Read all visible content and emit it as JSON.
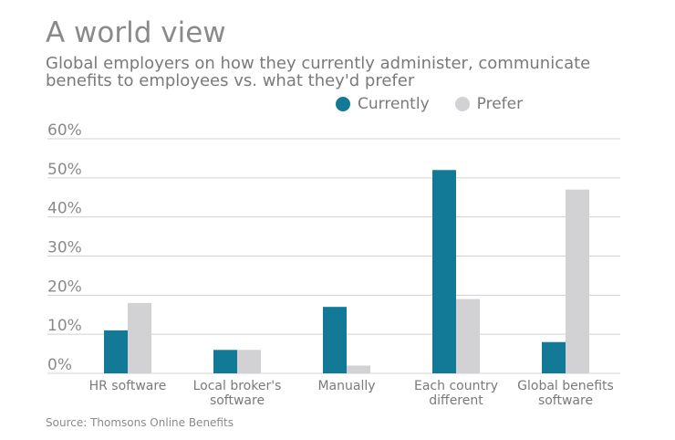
{
  "colors": {
    "currently": "#127a96",
    "prefer": "#d2d1d3",
    "grid": "#d0d0d0",
    "axis_text": "#8a8a8a"
  },
  "source": "Source: Thomsons Online Benefits",
  "chart_data": {
    "type": "bar",
    "title": "A world view",
    "subtitle": "Global employers on how they currently administer, communicate benefits to employees vs. what they'd prefer",
    "xlabel": "",
    "ylabel": "",
    "ylim": [
      0,
      60
    ],
    "yticks": [
      "0%",
      "10%",
      "20%",
      "30%",
      "40%",
      "50%",
      "60%"
    ],
    "ytick_values": [
      0,
      10,
      20,
      30,
      40,
      50,
      60
    ],
    "grid": true,
    "legend_position": "top-right",
    "categories": [
      [
        "HR software"
      ],
      [
        "Local broker's",
        "software"
      ],
      [
        "Manually"
      ],
      [
        "Each country",
        "different"
      ],
      [
        "Global benefits",
        "software"
      ]
    ],
    "series": [
      {
        "name": "Currently",
        "values": [
          11,
          6,
          17,
          52,
          8
        ]
      },
      {
        "name": "Prefer",
        "values": [
          18,
          6,
          2,
          19,
          47
        ]
      }
    ]
  }
}
